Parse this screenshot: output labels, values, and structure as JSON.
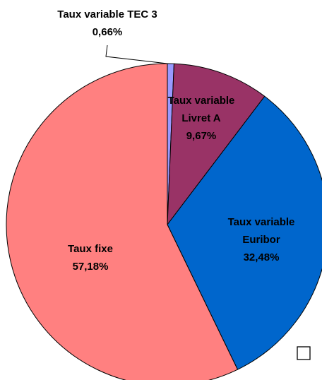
{
  "chart_data": {
    "type": "pie",
    "categories": [
      "Taux variable TEC 3",
      "Taux variable Livret A",
      "Taux variable Euribor",
      "Taux fixe"
    ],
    "values": [
      0.66,
      9.67,
      32.48,
      57.18
    ],
    "value_labels": [
      "0,66%",
      "9,67%",
      "32,48%",
      "57,18%"
    ],
    "colors": [
      "#9999ff",
      "#993366",
      "#0066cc",
      "#ff8080"
    ]
  }
}
